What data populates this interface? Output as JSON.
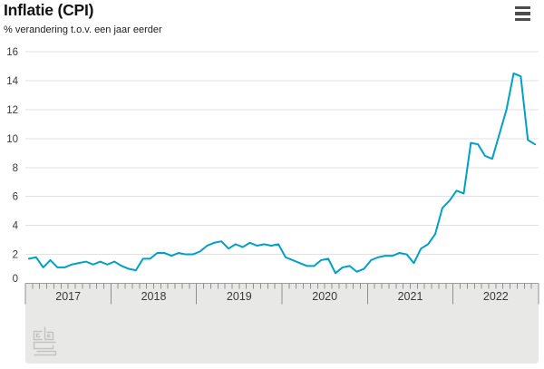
{
  "header": {
    "title": "Inflatie (CPI)",
    "subtitle": "% verandering t.o.v. een jaar eerder",
    "menu_icon": "hamburger-menu-icon"
  },
  "branding": {
    "logo_icon": "cbs-logo"
  },
  "colors": {
    "line": "#00a0c8",
    "grid": "#e2e2e2",
    "axis_line": "#9e9e9e",
    "tick": "#8f8f8f",
    "panel": "#e8e8e6",
    "label": "#3a3a3a",
    "title": "#141414",
    "menu": "#4c4c4c",
    "logo": "#c3c3c3"
  },
  "chart_data": {
    "type": "line",
    "title": "Inflatie (CPI)",
    "subtitle": "% verandering t.o.v. een jaar eerder",
    "ylabel": "% verandering t.o.v. een jaar eerder",
    "ylim": [
      0,
      16
    ],
    "yticks": [
      0,
      2,
      4,
      6,
      8,
      10,
      12,
      14,
      16
    ],
    "grid": true,
    "legend": false,
    "x_unit": "month",
    "x_year_labels": [
      "2017",
      "2018",
      "2019",
      "2020",
      "2021",
      "2022"
    ],
    "series": [
      {
        "name": "Inflatie (CPI)",
        "unit": "%",
        "start": "2017-01",
        "end": "2022-12",
        "monthly_values_by_year": {
          "2017": [
            1.7,
            1.8,
            1.1,
            1.6,
            1.1,
            1.1,
            1.3,
            1.4,
            1.5,
            1.3,
            1.5,
            1.3
          ],
          "2018": [
            1.5,
            1.2,
            1.0,
            0.9,
            1.7,
            1.7,
            2.1,
            2.1,
            1.9,
            2.1,
            2.0,
            2.0
          ],
          "2019": [
            2.2,
            2.6,
            2.8,
            2.9,
            2.4,
            2.7,
            2.5,
            2.8,
            2.6,
            2.7,
            2.6,
            2.7
          ],
          "2020": [
            1.8,
            1.6,
            1.4,
            1.2,
            1.2,
            1.6,
            1.7,
            0.7,
            1.1,
            1.2,
            0.8,
            1.0
          ],
          "2021": [
            1.6,
            1.8,
            1.9,
            1.9,
            2.1,
            2.0,
            1.4,
            2.4,
            2.7,
            3.4,
            5.2,
            5.7
          ],
          "2022": [
            6.4,
            6.2,
            9.7,
            9.6,
            8.8,
            8.6,
            10.3,
            12.0,
            14.5,
            14.3,
            9.9,
            9.6
          ]
        }
      }
    ]
  }
}
